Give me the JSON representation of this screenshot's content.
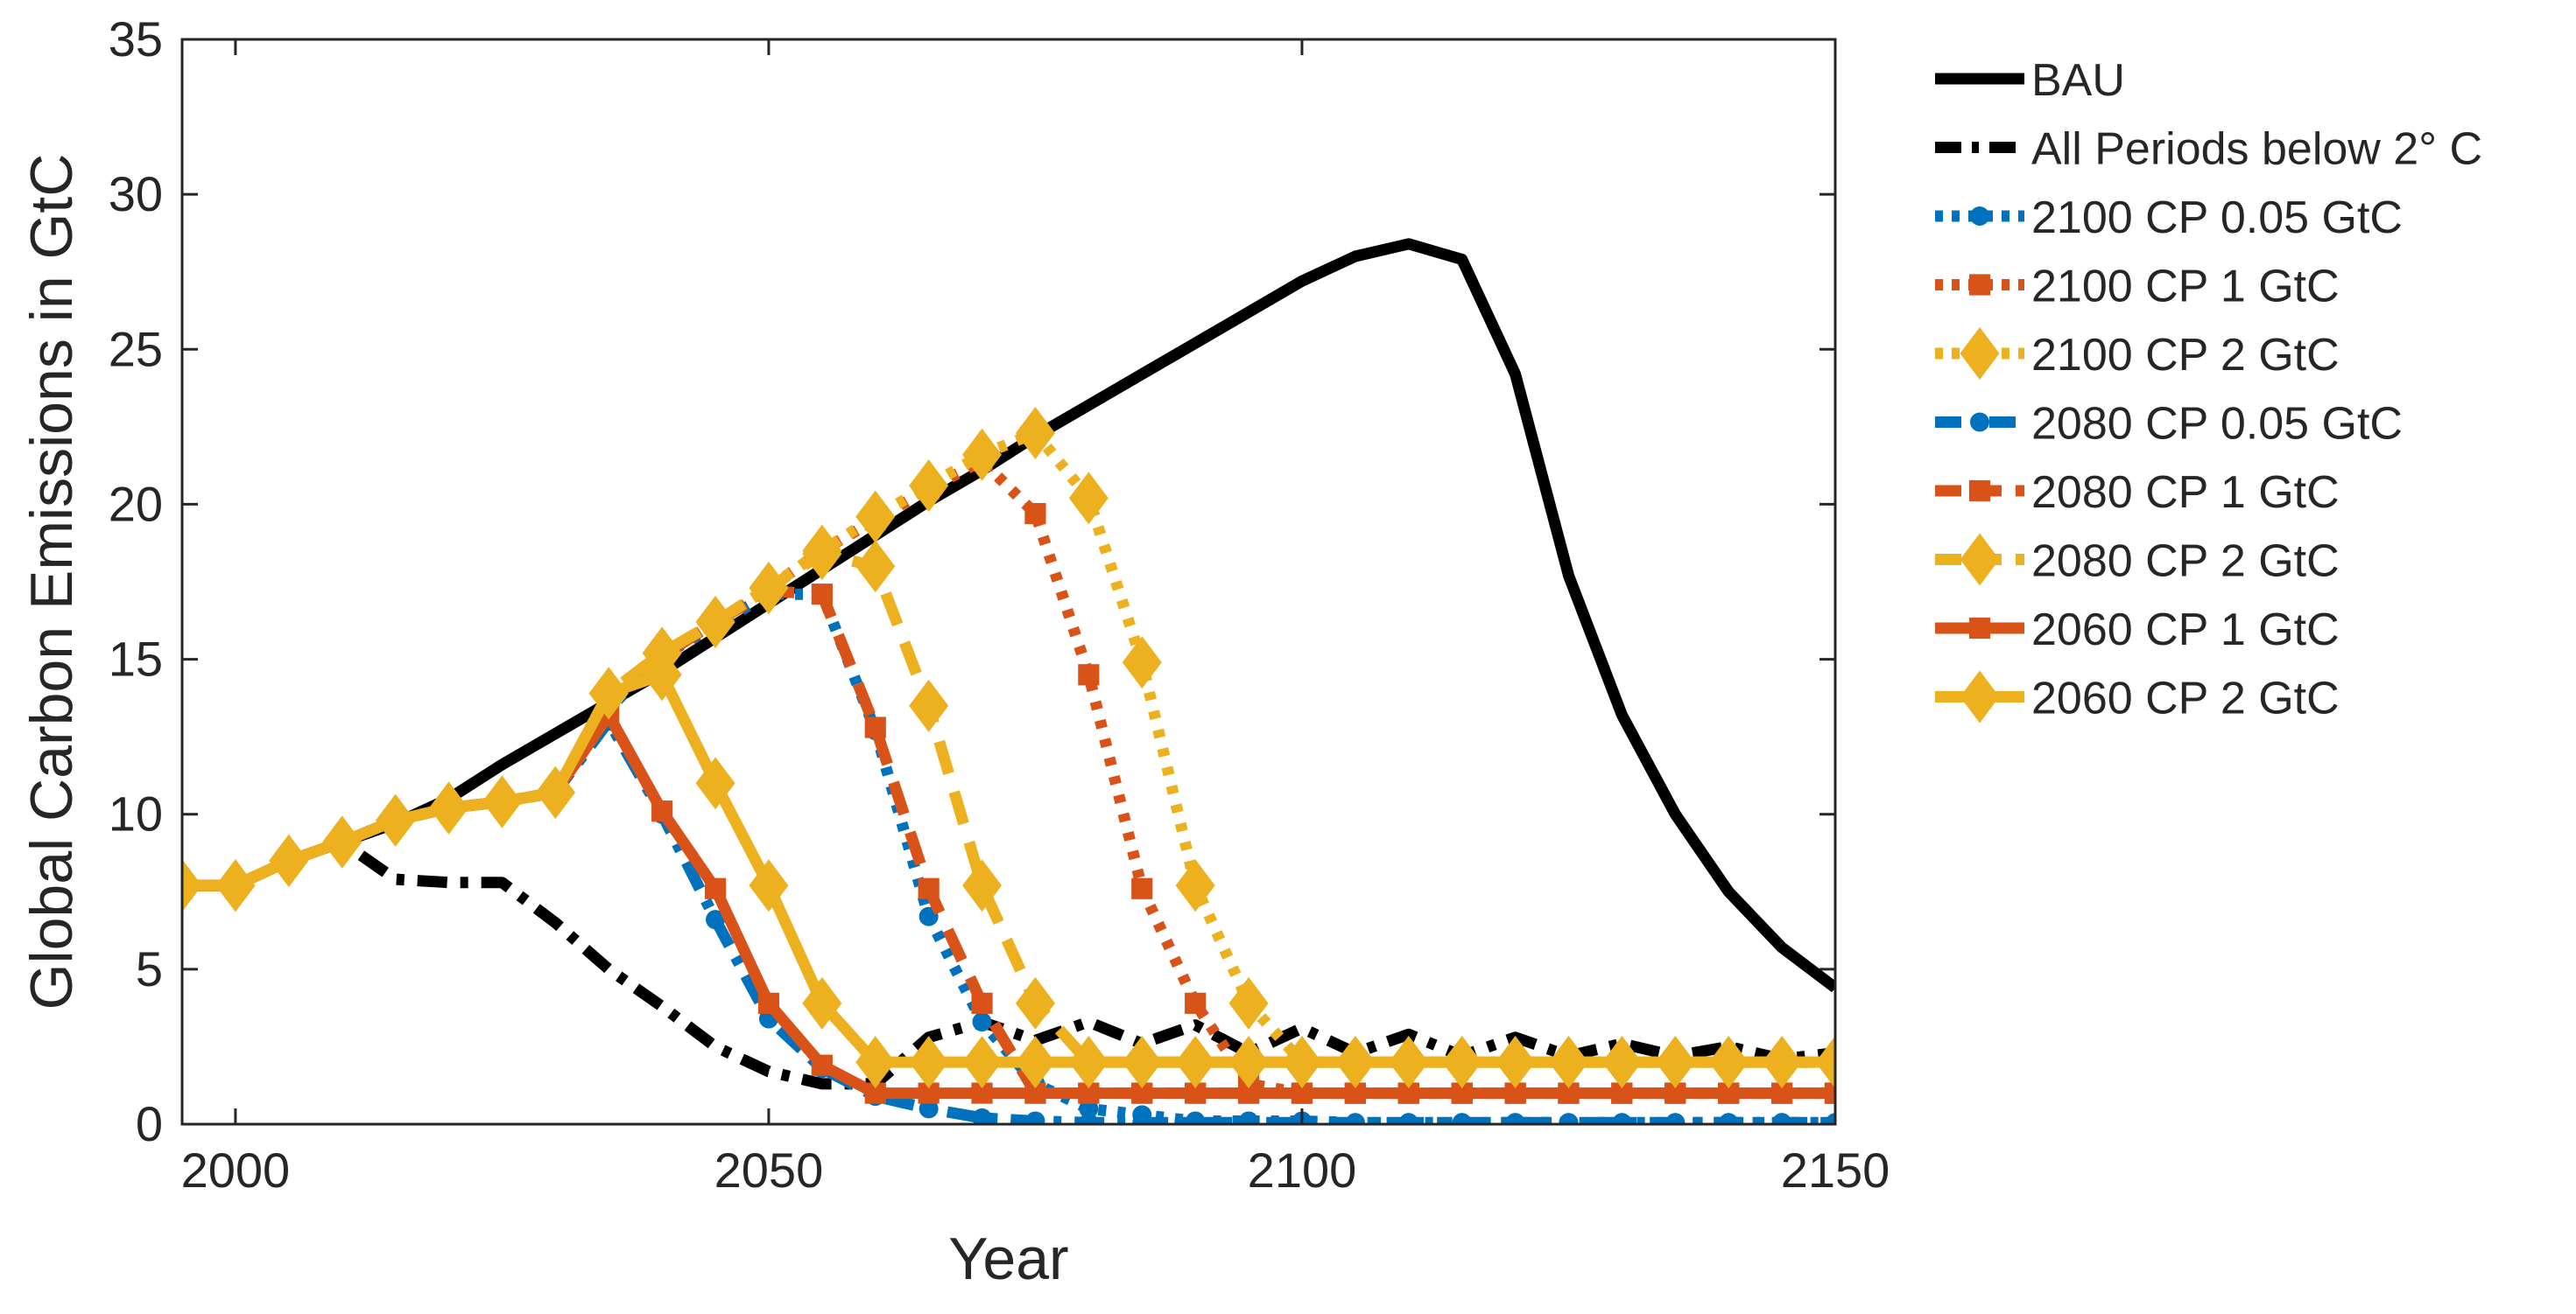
{
  "chart_data": {
    "type": "line",
    "title": "",
    "xlabel": "Year",
    "ylabel": "Global Carbon Emissions in GtC",
    "xlim": [
      1995,
      2150
    ],
    "ylim": [
      0,
      35
    ],
    "xticks": [
      2000,
      2050,
      2100,
      2150
    ],
    "yticks": [
      0,
      5,
      10,
      15,
      20,
      25,
      30,
      35
    ],
    "legend_position": "outside-right",
    "colors": {
      "black": "#000000",
      "blue": "#0072BD",
      "orange": "#D95319",
      "yellow": "#EDB120",
      "axis": "#262626"
    },
    "x": [
      1995,
      2000,
      2005,
      2010,
      2015,
      2020,
      2025,
      2030,
      2035,
      2040,
      2045,
      2050,
      2055,
      2060,
      2065,
      2070,
      2075,
      2080,
      2085,
      2090,
      2095,
      2100,
      2105,
      2110,
      2115,
      2120,
      2125,
      2130,
      2135,
      2140,
      2145,
      2150
    ],
    "series": [
      {
        "name": "BAU",
        "color": "black",
        "style": "solid",
        "marker": "none",
        "values": [
          7.7,
          7.7,
          8.5,
          9.1,
          9.7,
          10.5,
          11.6,
          12.6,
          13.6,
          14.6,
          15.7,
          16.8,
          17.9,
          19.0,
          20.1,
          21.1,
          22.2,
          23.2,
          24.2,
          25.2,
          26.2,
          27.2,
          28.0,
          28.4,
          27.9,
          24.2,
          17.7,
          13.2,
          10.0,
          7.5,
          5.7,
          4.4
        ]
      },
      {
        "name": "All Periods below 2° C",
        "color": "black",
        "style": "dashdot",
        "marker": "none",
        "values": [
          7.7,
          7.7,
          8.5,
          9.1,
          7.9,
          7.8,
          7.8,
          6.5,
          5.0,
          3.8,
          2.5,
          1.7,
          1.3,
          1.3,
          2.8,
          3.3,
          2.7,
          3.3,
          2.6,
          3.2,
          2.3,
          3.1,
          2.3,
          2.9,
          2.2,
          2.8,
          2.2,
          2.6,
          2.2,
          2.5,
          2.1,
          2.3
        ]
      },
      {
        "name": "2100 CP 0.05 GtC",
        "color": "blue",
        "style": "dotted",
        "marker": "circle",
        "values": [
          7.7,
          7.7,
          8.5,
          9.1,
          9.8,
          10.2,
          10.4,
          10.7,
          13.4,
          15.1,
          16.1,
          17.1,
          17.1,
          12.7,
          6.7,
          3.3,
          1.3,
          0.5,
          0.3,
          0.1,
          0.1,
          0.1,
          0.05,
          0.05,
          0.05,
          0.05,
          0.05,
          0.05,
          0.05,
          0.05,
          0.05,
          0.05
        ]
      },
      {
        "name": "2100 CP 1 GtC",
        "color": "orange",
        "style": "dotted",
        "marker": "square",
        "values": [
          7.7,
          7.7,
          8.5,
          9.1,
          9.8,
          10.2,
          10.4,
          10.7,
          13.8,
          15.1,
          16.2,
          17.3,
          18.5,
          19.5,
          20.5,
          21.4,
          19.7,
          14.5,
          7.6,
          3.9,
          1.3,
          1.0,
          1.0,
          1.0,
          1.0,
          1.0,
          1.0,
          1.0,
          1.0,
          1.0,
          1.0,
          1.0
        ]
      },
      {
        "name": "2100 CP 2 GtC",
        "color": "yellow",
        "style": "dotted",
        "marker": "diamond",
        "values": [
          7.7,
          7.7,
          8.5,
          9.1,
          9.8,
          10.2,
          10.4,
          10.7,
          13.9,
          15.2,
          16.2,
          17.3,
          18.5,
          19.6,
          20.6,
          21.6,
          22.3,
          20.2,
          14.9,
          7.7,
          3.9,
          2.0,
          2.0,
          2.0,
          2.0,
          2.0,
          2.0,
          2.0,
          2.0,
          2.0,
          2.0,
          2.0
        ]
      },
      {
        "name": "2080 CP 0.05 GtC",
        "color": "blue",
        "style": "dashdot",
        "marker": "circle",
        "values": [
          7.7,
          7.7,
          8.5,
          9.1,
          9.8,
          10.2,
          10.4,
          10.7,
          13.0,
          10.0,
          6.6,
          3.4,
          1.8,
          0.9,
          0.5,
          0.2,
          0.1,
          0.05,
          0.05,
          0.05,
          0.05,
          0.05,
          0.05,
          0.05,
          0.05,
          0.05,
          0.05,
          0.05,
          0.05,
          0.05,
          0.05,
          0.05
        ]
      },
      {
        "name": "2080 CP 1 GtC",
        "color": "orange",
        "style": "dashed",
        "marker": "square",
        "values": [
          7.7,
          7.7,
          8.5,
          9.1,
          9.8,
          10.2,
          10.4,
          10.7,
          13.8,
          15.1,
          16.2,
          17.2,
          17.1,
          12.8,
          7.6,
          3.9,
          1.0,
          1.0,
          1.0,
          1.0,
          1.0,
          1.0,
          1.0,
          1.0,
          1.0,
          1.0,
          1.0,
          1.0,
          1.0,
          1.0,
          1.0,
          1.0
        ]
      },
      {
        "name": "2080 CP 2 GtC",
        "color": "yellow",
        "style": "dashed",
        "marker": "diamond",
        "values": [
          7.7,
          7.7,
          8.5,
          9.1,
          9.8,
          10.2,
          10.4,
          10.7,
          13.9,
          15.2,
          16.2,
          17.3,
          18.4,
          18.0,
          13.5,
          7.7,
          3.9,
          2.0,
          2.0,
          2.0,
          2.0,
          2.0,
          2.0,
          2.0,
          2.0,
          2.0,
          2.0,
          2.0,
          2.0,
          2.0,
          2.0,
          2.0
        ]
      },
      {
        "name": "2060 CP 1 GtC",
        "color": "orange",
        "style": "solid",
        "marker": "square",
        "values": [
          7.7,
          7.7,
          8.5,
          9.1,
          9.8,
          10.2,
          10.4,
          10.7,
          13.2,
          10.1,
          7.6,
          3.9,
          1.9,
          1.0,
          1.0,
          1.0,
          1.0,
          1.0,
          1.0,
          1.0,
          1.0,
          1.0,
          1.0,
          1.0,
          1.0,
          1.0,
          1.0,
          1.0,
          1.0,
          1.0,
          1.0,
          1.0
        ]
      },
      {
        "name": "2060 CP 2 GtC",
        "color": "yellow",
        "style": "solid",
        "marker": "diamond",
        "values": [
          7.7,
          7.7,
          8.5,
          9.1,
          9.8,
          10.2,
          10.4,
          10.7,
          13.9,
          14.5,
          11.0,
          7.7,
          3.9,
          2.0,
          2.0,
          2.0,
          2.0,
          2.0,
          2.0,
          2.0,
          2.0,
          2.0,
          2.0,
          2.0,
          2.0,
          2.0,
          2.0,
          2.0,
          2.0,
          2.0,
          2.0,
          2.0
        ]
      }
    ]
  }
}
